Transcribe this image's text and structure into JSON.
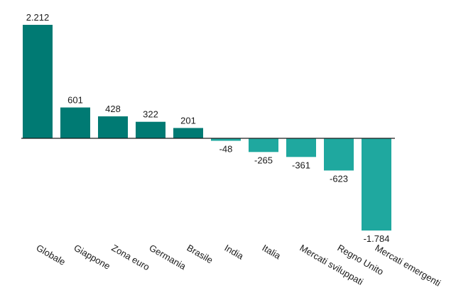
{
  "chart_data": {
    "type": "bar",
    "categories": [
      "Globale",
      "Giappone",
      "Zona euro",
      "Germania",
      "Brasile",
      "India",
      "Italia",
      "Mercati sviluppati",
      "Regno Unito",
      "Mercati emergenti"
    ],
    "values": [
      2212,
      601,
      428,
      322,
      201,
      -48,
      -265,
      -361,
      -623,
      -1784
    ],
    "value_labels": [
      "2.212",
      "601",
      "428",
      "322",
      "201",
      "-48",
      "-265",
      "-361",
      "-623",
      "-1.784"
    ],
    "colors": {
      "positive": "#007a73",
      "negative": "#1fa89f"
    },
    "title": "",
    "xlabel": "",
    "ylabel": "",
    "ylim": [
      -1784,
      2212
    ],
    "grid": false,
    "legend": "none"
  }
}
